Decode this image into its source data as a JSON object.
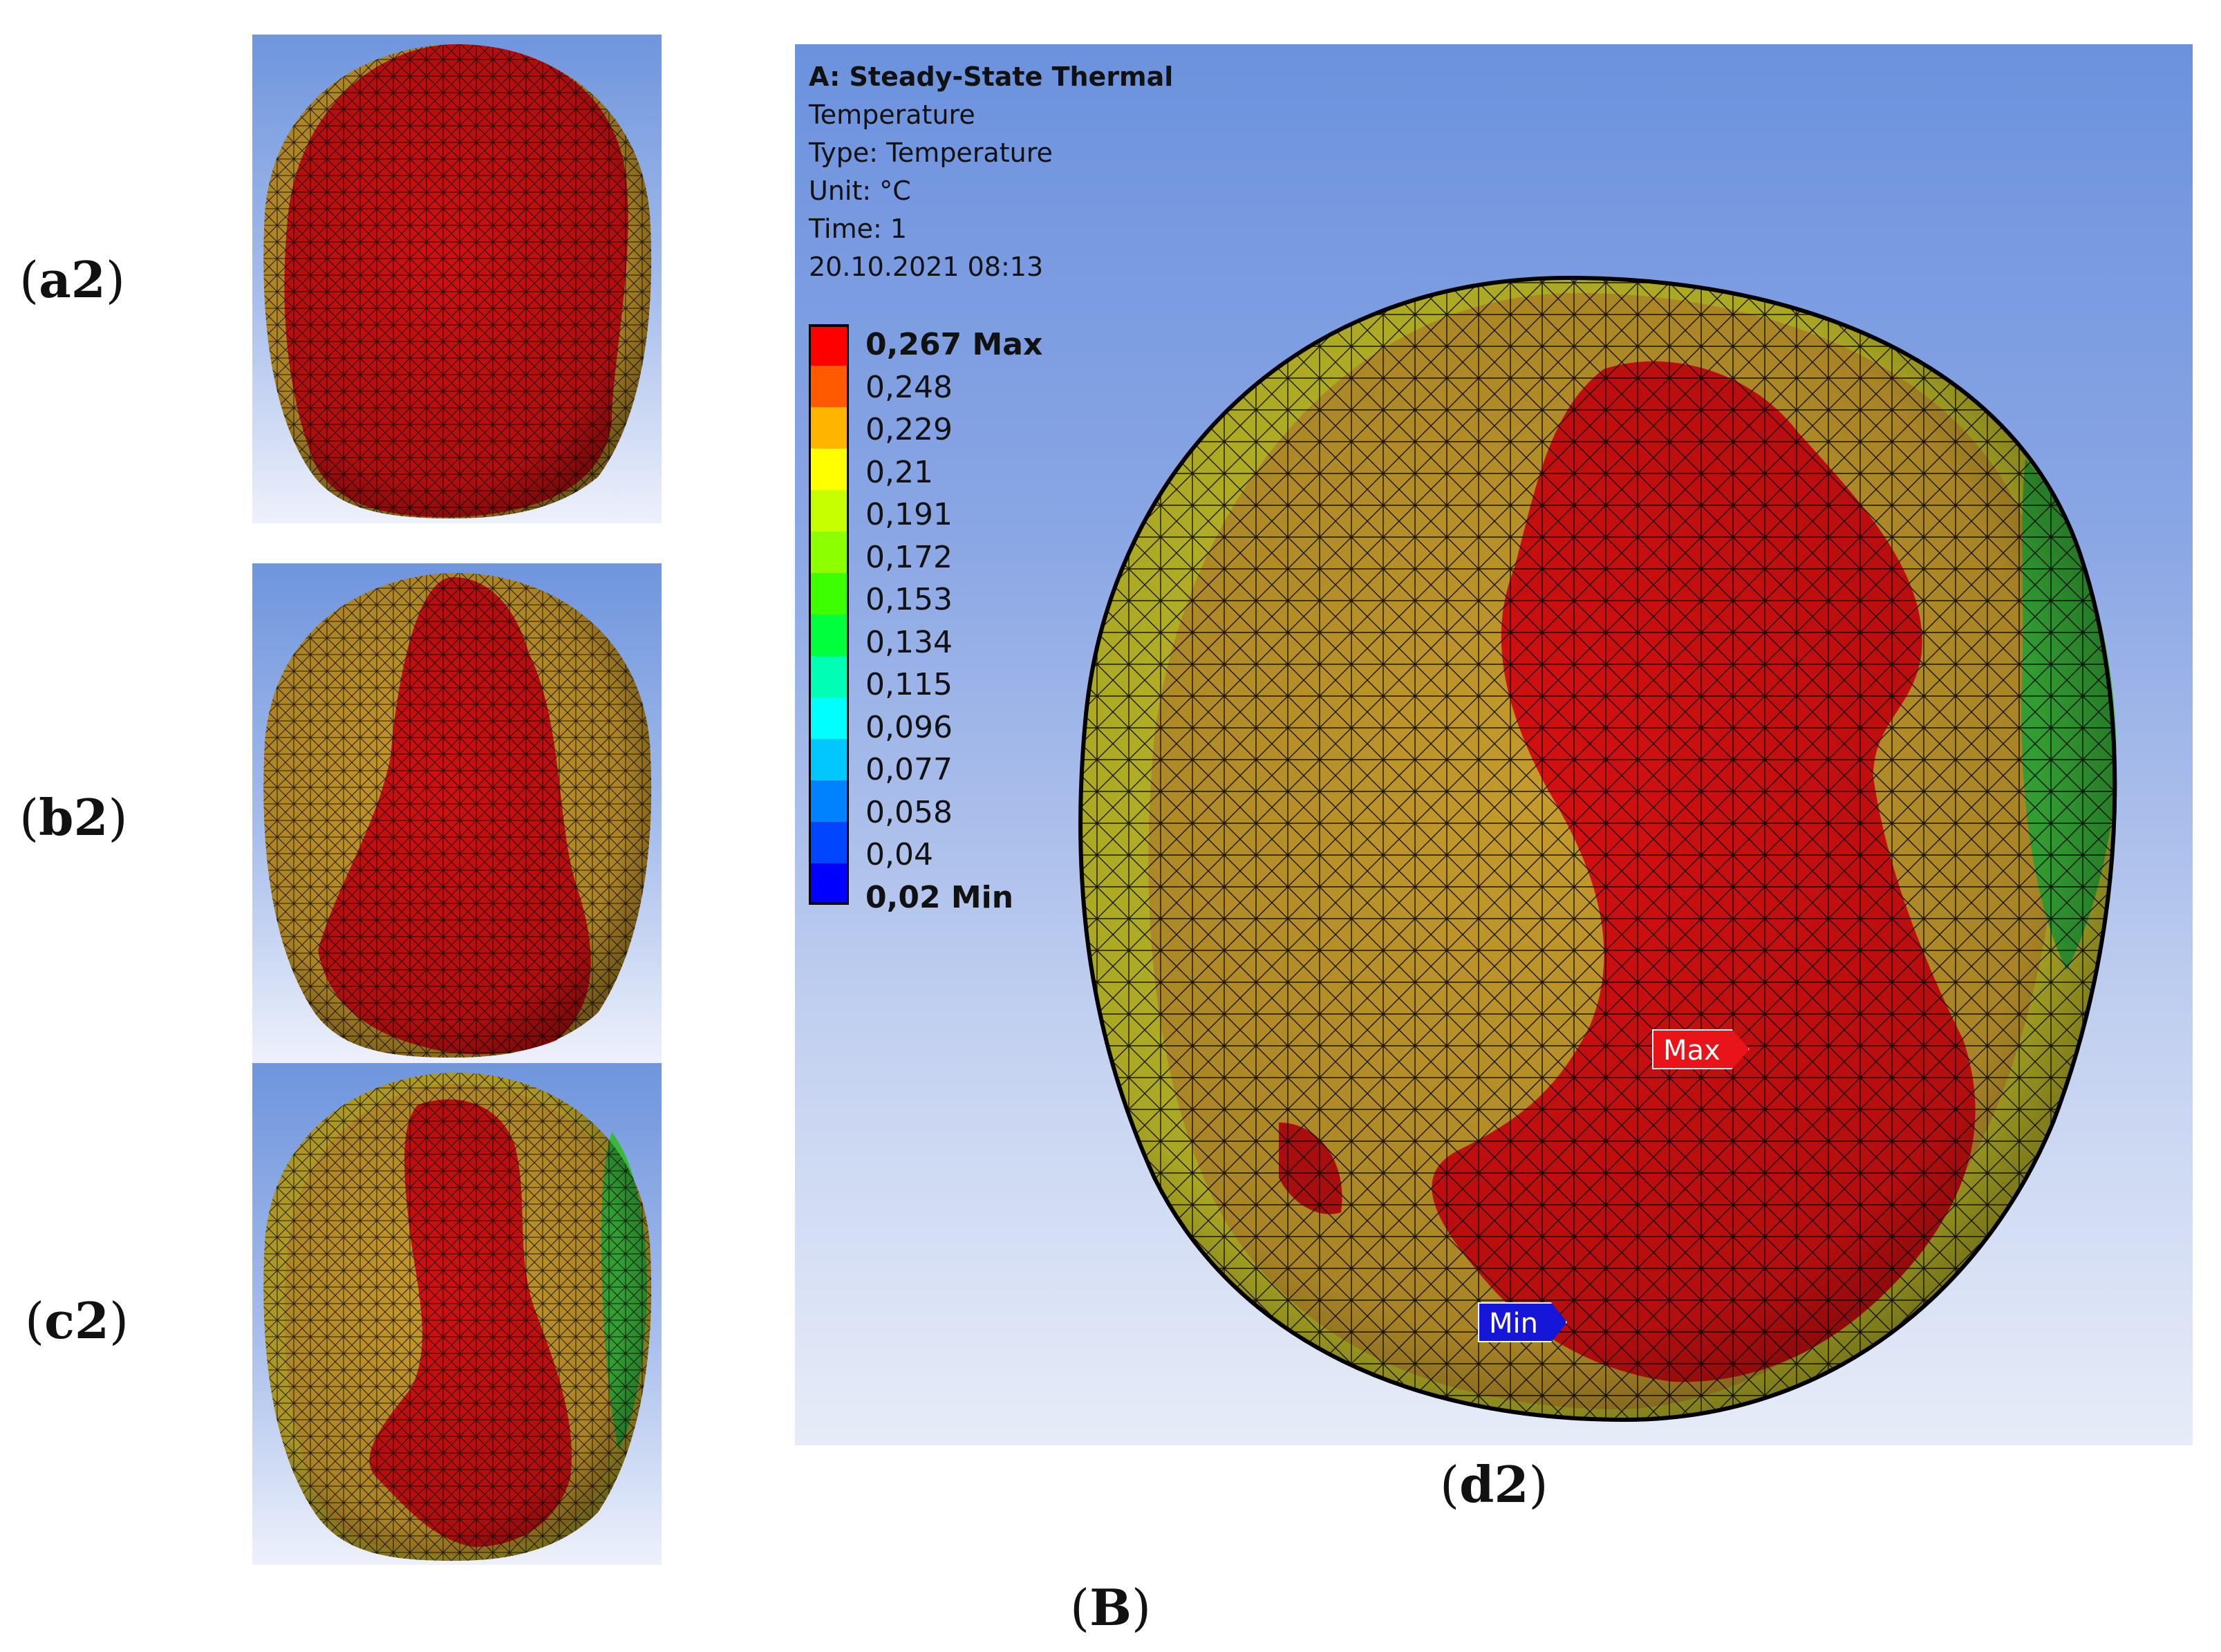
{
  "figure": {
    "group_label_prefix": "(",
    "group_label": "B",
    "group_label_suffix": ")"
  },
  "panels": [
    {
      "id": "a2",
      "label": "a2"
    },
    {
      "id": "b2",
      "label": "b2"
    },
    {
      "id": "c2",
      "label": "c2"
    },
    {
      "id": "d2",
      "label": "d2"
    }
  ],
  "viewer": {
    "title": "A: Steady-State Thermal",
    "result": "Temperature",
    "type": "Type: Temperature",
    "unit": "Unit: °C",
    "time": "Time: 1",
    "timestamp": "20.10.2021 08:13",
    "legend": [
      {
        "label": "0,267 Max",
        "color": "#ff0000",
        "bold": true
      },
      {
        "label": "0,248",
        "color": "#ff5a00",
        "bold": false
      },
      {
        "label": "0,229",
        "color": "#ffb400",
        "bold": false
      },
      {
        "label": "0,21",
        "color": "#ffff00",
        "bold": false
      },
      {
        "label": "0,191",
        "color": "#c8ff00",
        "bold": false
      },
      {
        "label": "0,172",
        "color": "#8cff00",
        "bold": false
      },
      {
        "label": "0,153",
        "color": "#3cff00",
        "bold": false
      },
      {
        "label": "0,134",
        "color": "#00ff3c",
        "bold": false
      },
      {
        "label": "0,115",
        "color": "#00ffb4",
        "bold": false
      },
      {
        "label": "0,096",
        "color": "#00ffff",
        "bold": false
      },
      {
        "label": "0,077",
        "color": "#00c8ff",
        "bold": false
      },
      {
        "label": "0,058",
        "color": "#0082ff",
        "bold": false
      },
      {
        "label": "0,04",
        "color": "#0046ff",
        "bold": false
      },
      {
        "label": "0,02 Min",
        "color": "#0000ff",
        "bold": true
      }
    ],
    "max_tag": "Max",
    "min_tag": "Min"
  },
  "colors": {
    "hot": "#d41010",
    "warm": "#c89a2a",
    "mild": "#c8c22a",
    "cool": "#33c23a",
    "mesh": "#000000"
  }
}
